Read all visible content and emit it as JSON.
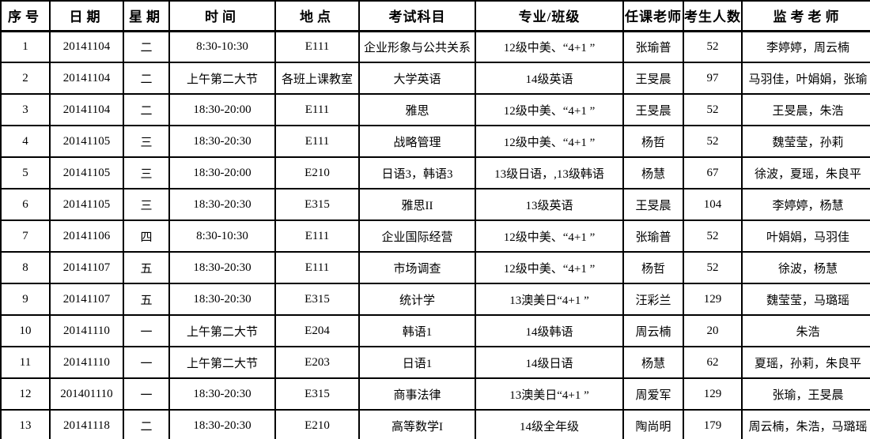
{
  "table": {
    "columns": [
      {
        "key": "index",
        "label": "序号"
      },
      {
        "key": "date",
        "label": "日期"
      },
      {
        "key": "weekday",
        "label": "星期"
      },
      {
        "key": "time",
        "label": "时间"
      },
      {
        "key": "location",
        "label": "地点"
      },
      {
        "key": "subject",
        "label": "考试科目"
      },
      {
        "key": "class",
        "label": "专业/班级"
      },
      {
        "key": "teacher",
        "label": "任课老师"
      },
      {
        "key": "student_count",
        "label": "考生人数"
      },
      {
        "key": "proctors",
        "label": "监考老师"
      }
    ],
    "rows": [
      [
        "1",
        "20141104",
        "二",
        "8:30-10:30",
        "E111",
        "企业形象与公共关系",
        "12级中美、“4+1 ”",
        "张瑜普",
        "52",
        "李婷婷，周云楠"
      ],
      [
        "2",
        "20141104",
        "二",
        "上午第二大节",
        "各班上课教室",
        "大学英语",
        "14级英语",
        "王旻晨",
        "97",
        "马羽佳，叶娟娟，张瑜"
      ],
      [
        "3",
        "20141104",
        "二",
        "18:30-20:00",
        "E111",
        "雅思",
        "12级中美、“4+1 ”",
        "王旻晨",
        "52",
        "王旻晨，朱浩"
      ],
      [
        "4",
        "20141105",
        "三",
        "18:30-20:30",
        "E111",
        "战略管理",
        "12级中美、“4+1 ”",
        "杨哲",
        "52",
        "魏莹莹，孙莉"
      ],
      [
        "5",
        "20141105",
        "三",
        "18:30-20:00",
        "E210",
        "日语3，韩语3",
        "13级日语，,13级韩语",
        "杨慧",
        "67",
        "徐波，夏瑶，朱良平"
      ],
      [
        "6",
        "20141105",
        "三",
        "18:30-20:30",
        "E315",
        "雅思II",
        "13级英语",
        "王旻晨",
        "104",
        "李婷婷，杨慧"
      ],
      [
        "7",
        "20141106",
        "四",
        "8:30-10:30",
        "E111",
        "企业国际经营",
        "12级中美、“4+1 ”",
        "张瑜普",
        "52",
        "叶娟娟，马羽佳"
      ],
      [
        "8",
        "20141107",
        "五",
        "18:30-20:30",
        "E111",
        "市场调查",
        "12级中美、“4+1 ”",
        "杨哲",
        "52",
        "徐波，杨慧"
      ],
      [
        "9",
        "20141107",
        "五",
        "18:30-20:30",
        "E315",
        "统计学",
        "13澳美日“4+1 ”",
        "汪彩兰",
        "129",
        "魏莹莹，马璐瑶"
      ],
      [
        "10",
        "20141110",
        "一",
        "上午第二大节",
        "E204",
        "韩语1",
        "14级韩语",
        "周云楠",
        "20",
        "朱浩"
      ],
      [
        "11",
        "20141110",
        "一",
        "上午第二大节",
        "E203",
        "日语1",
        "14级日语",
        "杨慧",
        "62",
        "夏瑶，孙莉，朱良平"
      ],
      [
        "12",
        "201401110",
        "一",
        "18:30-20:30",
        "E315",
        "商事法律",
        "13澳美日“4+1 ”",
        "周爱军",
        "129",
        "张瑜，王旻晨"
      ],
      [
        "13",
        "20141118",
        "二",
        "18:30-20:30",
        "E210",
        "高等数学I",
        "14级全年级",
        "陶尚明",
        "179",
        "周云楠，朱浩，马璐瑶"
      ]
    ]
  }
}
